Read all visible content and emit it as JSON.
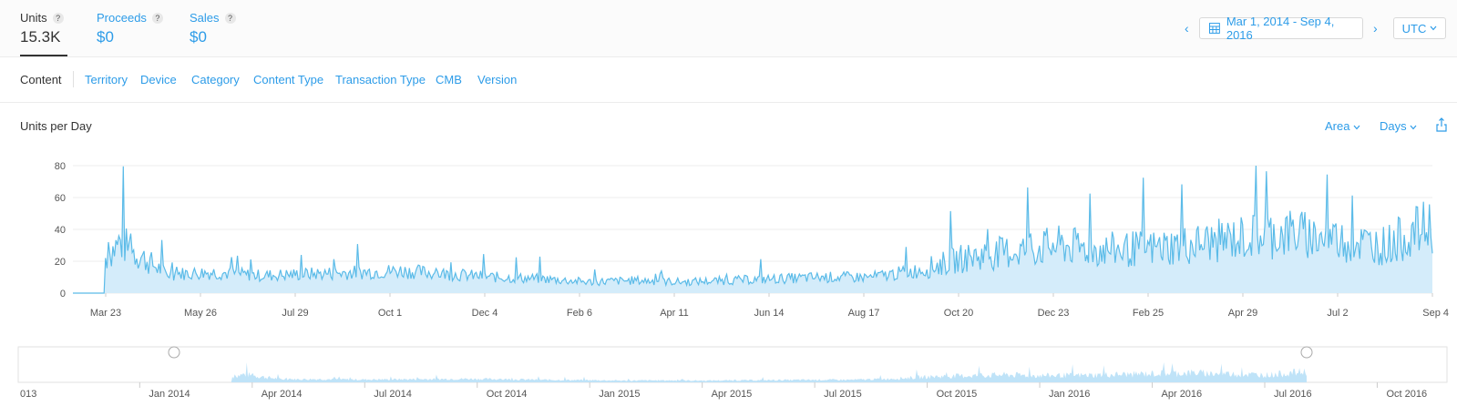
{
  "metrics": [
    {
      "label": "Units",
      "value": "15.3K",
      "help": "?"
    },
    {
      "label": "Proceeds",
      "value": "$0",
      "help": "?"
    },
    {
      "label": "Sales",
      "value": "$0",
      "help": "?"
    }
  ],
  "date_range": {
    "prev": "‹",
    "label": "Mar 1, 2014 - Sep 4, 2016",
    "next": "›"
  },
  "timezone": {
    "label": "UTC",
    "chevron": "⌄"
  },
  "tabs": [
    "Content",
    "Territory",
    "Device",
    "Category",
    "Content Type",
    "Transaction Type",
    "CMB",
    "Version"
  ],
  "chart_header": {
    "title": "Units per Day",
    "type_control": "Area",
    "interval_control": "Days"
  },
  "icons": {
    "calendar": "calendar-icon",
    "share": "share-icon",
    "chevron": "chevron-down-icon"
  },
  "colors": {
    "accent": "#2d9ce8",
    "line": "#5bbbe8",
    "fill": "#d4ecfa",
    "mini_fill": "#bfe3f8"
  },
  "chart_data": {
    "type": "area",
    "title": "Units per Day",
    "ylabel": "",
    "ylim": [
      0,
      80
    ],
    "y_ticks": [
      "0",
      "20",
      "40",
      "60",
      "80"
    ],
    "x_ticks": [
      "Mar 23",
      "May 26",
      "Jul 29",
      "Oct 1",
      "Dec 4",
      "Feb 6",
      "Apr 11",
      "Jun 14",
      "Aug 17",
      "Oct 20",
      "Dec 23",
      "Feb 25",
      "Apr 29",
      "Jul 2",
      "Sep 4"
    ],
    "grid": true,
    "series": [
      {
        "x": [
          "Mar 1",
          "Mar 23",
          "Apr 10",
          "May 26",
          "Jun 20",
          "Jul 29",
          "Aug 30",
          "Oct 1",
          "Nov 1",
          "Dec 4",
          "Jan 5",
          "Feb 6",
          "Mar 10",
          "Apr 11",
          "May 12",
          "Jun 14",
          "Jul 16",
          "Aug 17",
          "Sep 20",
          "Oct 20",
          "Nov 20",
          "Dec 23",
          "Jan 24",
          "Feb 25",
          "Mar 28",
          "Apr 29",
          "Jun 1",
          "Jul 2",
          "Aug 3",
          "Sep 4"
        ],
        "values": [
          0,
          32,
          12,
          13,
          11,
          12,
          13,
          14,
          12,
          10,
          9,
          7,
          8,
          7,
          8,
          9,
          10,
          10,
          14,
          22,
          26,
          30,
          27,
          28,
          31,
          35,
          38,
          33,
          30,
          43
        ]
      }
    ]
  },
  "overview": {
    "labels": [
      "013",
      "Jan 2014",
      "Apr 2014",
      "Jul 2014",
      "Oct 2014",
      "Jan 2015",
      "Apr 2015",
      "Jul 2015",
      "Oct 2015",
      "Jan 2016",
      "Apr 2016",
      "Jul 2016",
      "Oct 2016"
    ]
  }
}
